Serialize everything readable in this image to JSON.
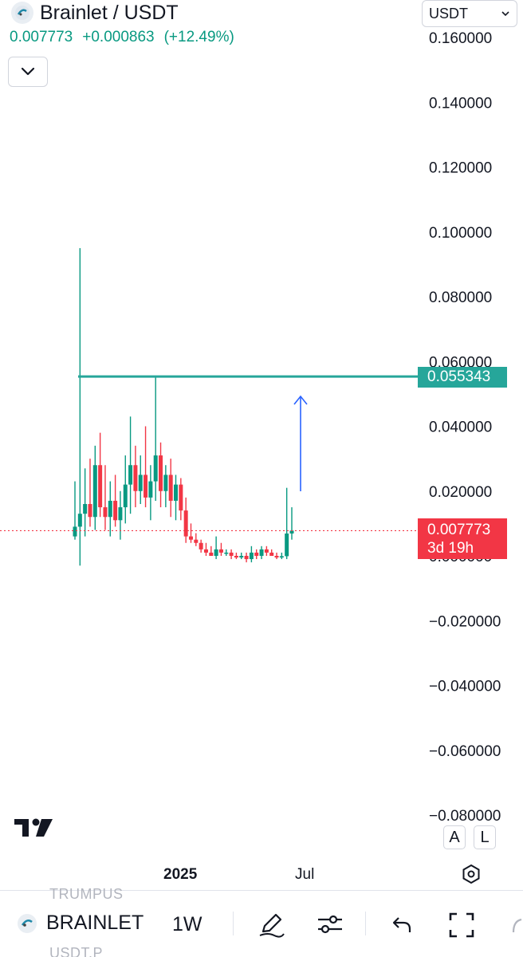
{
  "header": {
    "symbol_title": "Brainlet / USDT",
    "last_price": "0.007773",
    "change_abs": "+0.000863",
    "change_pct": "(+12.49%)",
    "currency": "USDT",
    "logo_icon": "brainlet-logo-icon",
    "dropdown_icon": "chevron-down-icon"
  },
  "price_axis": {
    "labels": [
      "0.160000",
      "0.140000",
      "0.120000",
      "0.100000",
      "0.080000",
      "0.060000",
      "0.040000",
      "0.020000",
      "0.000000",
      "−0.020000",
      "−0.040000",
      "−0.060000",
      "−0.080000"
    ]
  },
  "tags": {
    "level_price": "0.055343",
    "last_price": "0.007773",
    "countdown": "3d 19h"
  },
  "time_axis": {
    "year_label": "2025",
    "month_label": "Jul"
  },
  "scale_buttons": {
    "auto": "A",
    "log": "L"
  },
  "toolbar": {
    "symbol": "BRAINLET",
    "interval": "1W",
    "ghost_top": "TRUMPUS",
    "ghost_bottom": "USDT.P",
    "icons": [
      "brainlet-logo-icon",
      "pen-icon",
      "indicators-icon",
      "undo-icon",
      "fullscreen-icon"
    ]
  },
  "colors": {
    "up": "#089981",
    "down": "#f23645",
    "horizontal_level": "#26a69a",
    "arrow": "#2962ff",
    "text": "#131722"
  },
  "chart_data": {
    "type": "candlestick",
    "interval": "1W",
    "y_axis_range": [
      -0.08,
      0.16
    ],
    "horizontal_line": 0.055343,
    "last_price_line": 0.007773,
    "candles": [
      {
        "o": 0.006,
        "h": 0.023,
        "l": 0.005,
        "c": 0.009
      },
      {
        "o": 0.009,
        "h": 0.095,
        "l": -0.003,
        "c": 0.013
      },
      {
        "o": 0.013,
        "h": 0.027,
        "l": 0.006,
        "c": 0.016
      },
      {
        "o": 0.016,
        "h": 0.03,
        "l": 0.009,
        "c": 0.012
      },
      {
        "o": 0.012,
        "h": 0.034,
        "l": 0.008,
        "c": 0.028
      },
      {
        "o": 0.028,
        "h": 0.038,
        "l": 0.012,
        "c": 0.015
      },
      {
        "o": 0.015,
        "h": 0.028,
        "l": 0.008,
        "c": 0.012
      },
      {
        "o": 0.012,
        "h": 0.023,
        "l": 0.006,
        "c": 0.017
      },
      {
        "o": 0.017,
        "h": 0.025,
        "l": 0.009,
        "c": 0.011
      },
      {
        "o": 0.011,
        "h": 0.02,
        "l": 0.005,
        "c": 0.015
      },
      {
        "o": 0.015,
        "h": 0.031,
        "l": 0.01,
        "c": 0.022
      },
      {
        "o": 0.022,
        "h": 0.043,
        "l": 0.013,
        "c": 0.028
      },
      {
        "o": 0.028,
        "h": 0.034,
        "l": 0.015,
        "c": 0.02
      },
      {
        "o": 0.02,
        "h": 0.031,
        "l": 0.016,
        "c": 0.025
      },
      {
        "o": 0.025,
        "h": 0.04,
        "l": 0.015,
        "c": 0.018
      },
      {
        "o": 0.018,
        "h": 0.028,
        "l": 0.011,
        "c": 0.023
      },
      {
        "o": 0.023,
        "h": 0.0553,
        "l": 0.017,
        "c": 0.031
      },
      {
        "o": 0.031,
        "h": 0.035,
        "l": 0.015,
        "c": 0.02
      },
      {
        "o": 0.02,
        "h": 0.028,
        "l": 0.015,
        "c": 0.025
      },
      {
        "o": 0.025,
        "h": 0.03,
        "l": 0.012,
        "c": 0.017
      },
      {
        "o": 0.017,
        "h": 0.025,
        "l": 0.011,
        "c": 0.022
      },
      {
        "o": 0.022,
        "h": 0.024,
        "l": 0.011,
        "c": 0.014
      },
      {
        "o": 0.014,
        "h": 0.018,
        "l": 0.004,
        "c": 0.006
      },
      {
        "o": 0.006,
        "h": 0.01,
        "l": 0.004,
        "c": 0.005
      },
      {
        "o": 0.005,
        "h": 0.007,
        "l": 0.003,
        "c": 0.004
      },
      {
        "o": 0.004,
        "h": 0.005,
        "l": 0.001,
        "c": 0.002
      },
      {
        "o": 0.002,
        "h": 0.004,
        "l": 0.0,
        "c": 0.001
      },
      {
        "o": 0.001,
        "h": 0.003,
        "l": 0.0,
        "c": 0.0
      },
      {
        "o": 0.0,
        "h": 0.006,
        "l": -0.001,
        "c": 0.002
      },
      {
        "o": 0.002,
        "h": 0.004,
        "l": 0.0,
        "c": 0.001
      },
      {
        "o": 0.001,
        "h": 0.002,
        "l": 0.0,
        "c": 0.001
      },
      {
        "o": 0.001,
        "h": 0.002,
        "l": -0.001,
        "c": 0.0
      },
      {
        "o": 0.0,
        "h": 0.001,
        "l": -0.001,
        "c": -0.0005
      },
      {
        "o": -0.0005,
        "h": 0.001,
        "l": -0.001,
        "c": 0.0
      },
      {
        "o": 0.0,
        "h": 0.001,
        "l": -0.002,
        "c": -0.001
      },
      {
        "o": -0.001,
        "h": 0.003,
        "l": -0.002,
        "c": 0.001
      },
      {
        "o": 0.001,
        "h": 0.002,
        "l": -0.001,
        "c": 0.0
      },
      {
        "o": 0.0,
        "h": 0.003,
        "l": -0.001,
        "c": 0.002
      },
      {
        "o": 0.002,
        "h": 0.003,
        "l": 0.0,
        "c": 0.001
      },
      {
        "o": 0.001,
        "h": 0.002,
        "l": 0.0,
        "c": 0.0
      },
      {
        "o": 0.0,
        "h": 0.001,
        "l": -0.001,
        "c": -0.0005
      },
      {
        "o": -0.0005,
        "h": 0.001,
        "l": -0.001,
        "c": -0.0001
      },
      {
        "o": -0.0001,
        "h": 0.021,
        "l": -0.001,
        "c": 0.0069
      },
      {
        "o": 0.0069,
        "h": 0.015,
        "l": 0.005,
        "c": 0.0078
      }
    ]
  }
}
